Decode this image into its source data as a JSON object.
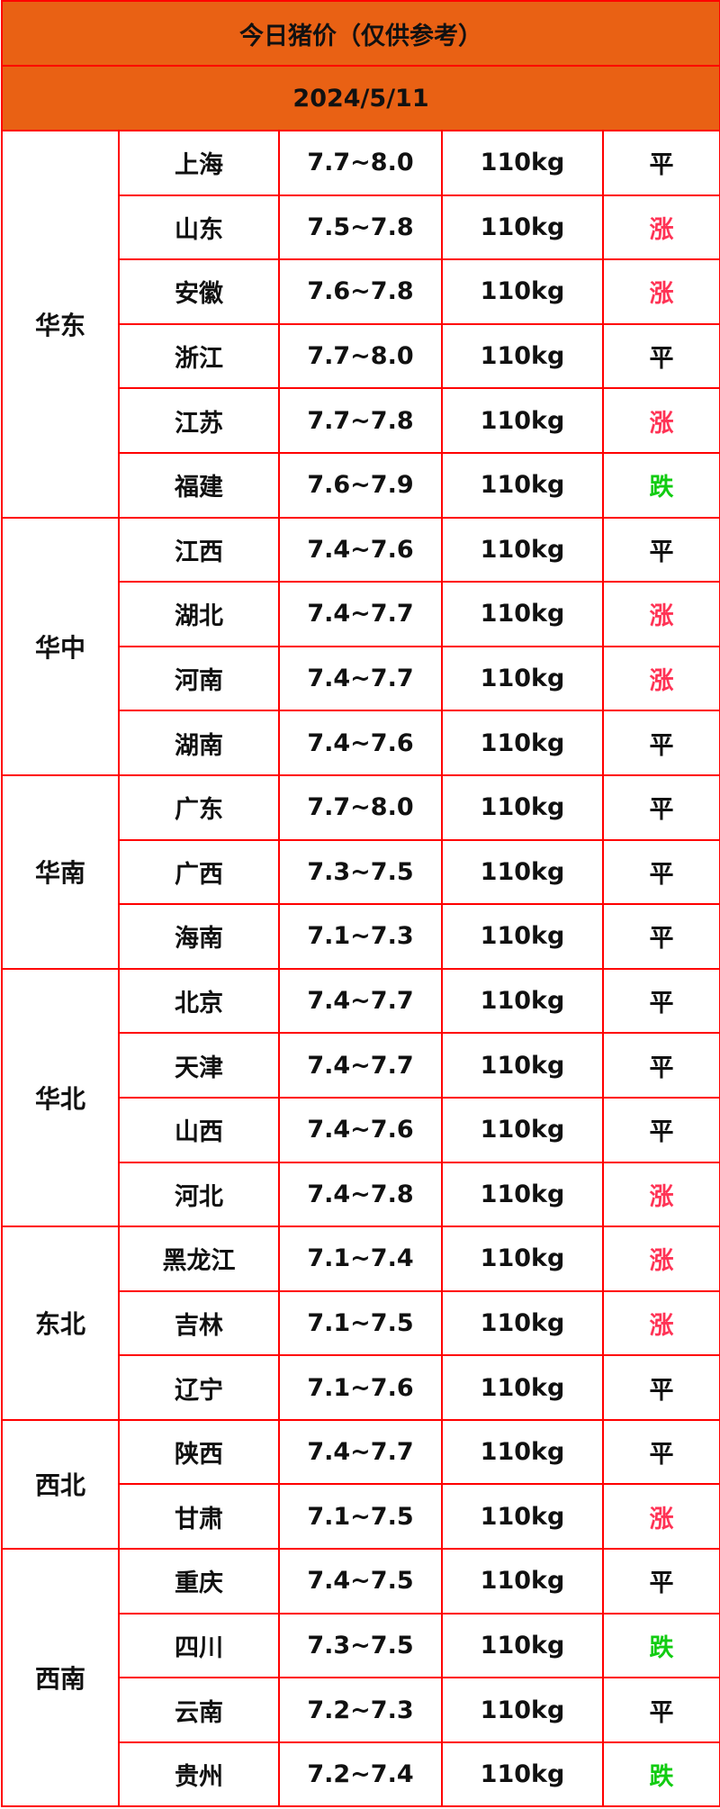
{
  "title": "今日猪价（仅供参考）",
  "date": "2024/5/11",
  "colors": {
    "header_bg": "#e96114",
    "border": "#ff0000",
    "up": "#ff3355",
    "down": "#11cc11",
    "flat": "#111111"
  },
  "regions": [
    {
      "name": "华东",
      "rows": [
        {
          "province": "上海",
          "price": "7.7~8.0",
          "weight": "110kg",
          "trend": "平"
        },
        {
          "province": "山东",
          "price": "7.5~7.8",
          "weight": "110kg",
          "trend": "涨"
        },
        {
          "province": "安徽",
          "price": "7.6~7.8",
          "weight": "110kg",
          "trend": "涨"
        },
        {
          "province": "浙江",
          "price": "7.7~8.0",
          "weight": "110kg",
          "trend": "平"
        },
        {
          "province": "江苏",
          "price": "7.7~7.8",
          "weight": "110kg",
          "trend": "涨"
        },
        {
          "province": "福建",
          "price": "7.6~7.9",
          "weight": "110kg",
          "trend": "跌"
        }
      ]
    },
    {
      "name": "华中",
      "rows": [
        {
          "province": "江西",
          "price": "7.4~7.6",
          "weight": "110kg",
          "trend": "平"
        },
        {
          "province": "湖北",
          "price": "7.4~7.7",
          "weight": "110kg",
          "trend": "涨"
        },
        {
          "province": "河南",
          "price": "7.4~7.7",
          "weight": "110kg",
          "trend": "涨"
        },
        {
          "province": "湖南",
          "price": "7.4~7.6",
          "weight": "110kg",
          "trend": "平"
        }
      ]
    },
    {
      "name": "华南",
      "rows": [
        {
          "province": "广东",
          "price": "7.7~8.0",
          "weight": "110kg",
          "trend": "平"
        },
        {
          "province": "广西",
          "price": "7.3~7.5",
          "weight": "110kg",
          "trend": "平"
        },
        {
          "province": "海南",
          "price": "7.1~7.3",
          "weight": "110kg",
          "trend": "平"
        }
      ]
    },
    {
      "name": "华北",
      "rows": [
        {
          "province": "北京",
          "price": "7.4~7.7",
          "weight": "110kg",
          "trend": "平"
        },
        {
          "province": "天津",
          "price": "7.4~7.7",
          "weight": "110kg",
          "trend": "平"
        },
        {
          "province": "山西",
          "price": "7.4~7.6",
          "weight": "110kg",
          "trend": "平"
        },
        {
          "province": "河北",
          "price": "7.4~7.8",
          "weight": "110kg",
          "trend": "涨"
        }
      ]
    },
    {
      "name": "东北",
      "rows": [
        {
          "province": "黑龙江",
          "price": "7.1~7.4",
          "weight": "110kg",
          "trend": "涨"
        },
        {
          "province": "吉林",
          "price": "7.1~7.5",
          "weight": "110kg",
          "trend": "涨"
        },
        {
          "province": "辽宁",
          "price": "7.1~7.6",
          "weight": "110kg",
          "trend": "平"
        }
      ]
    },
    {
      "name": "西北",
      "rows": [
        {
          "province": "陕西",
          "price": "7.4~7.7",
          "weight": "110kg",
          "trend": "平"
        },
        {
          "province": "甘肃",
          "price": "7.1~7.5",
          "weight": "110kg",
          "trend": "涨"
        }
      ]
    },
    {
      "name": "西南",
      "rows": [
        {
          "province": "重庆",
          "price": "7.4~7.5",
          "weight": "110kg",
          "trend": "平"
        },
        {
          "province": "四川",
          "price": "7.3~7.5",
          "weight": "110kg",
          "trend": "跌"
        },
        {
          "province": "云南",
          "price": "7.2~7.3",
          "weight": "110kg",
          "trend": "平"
        },
        {
          "province": "贵州",
          "price": "7.2~7.4",
          "weight": "110kg",
          "trend": "跌"
        }
      ]
    }
  ]
}
